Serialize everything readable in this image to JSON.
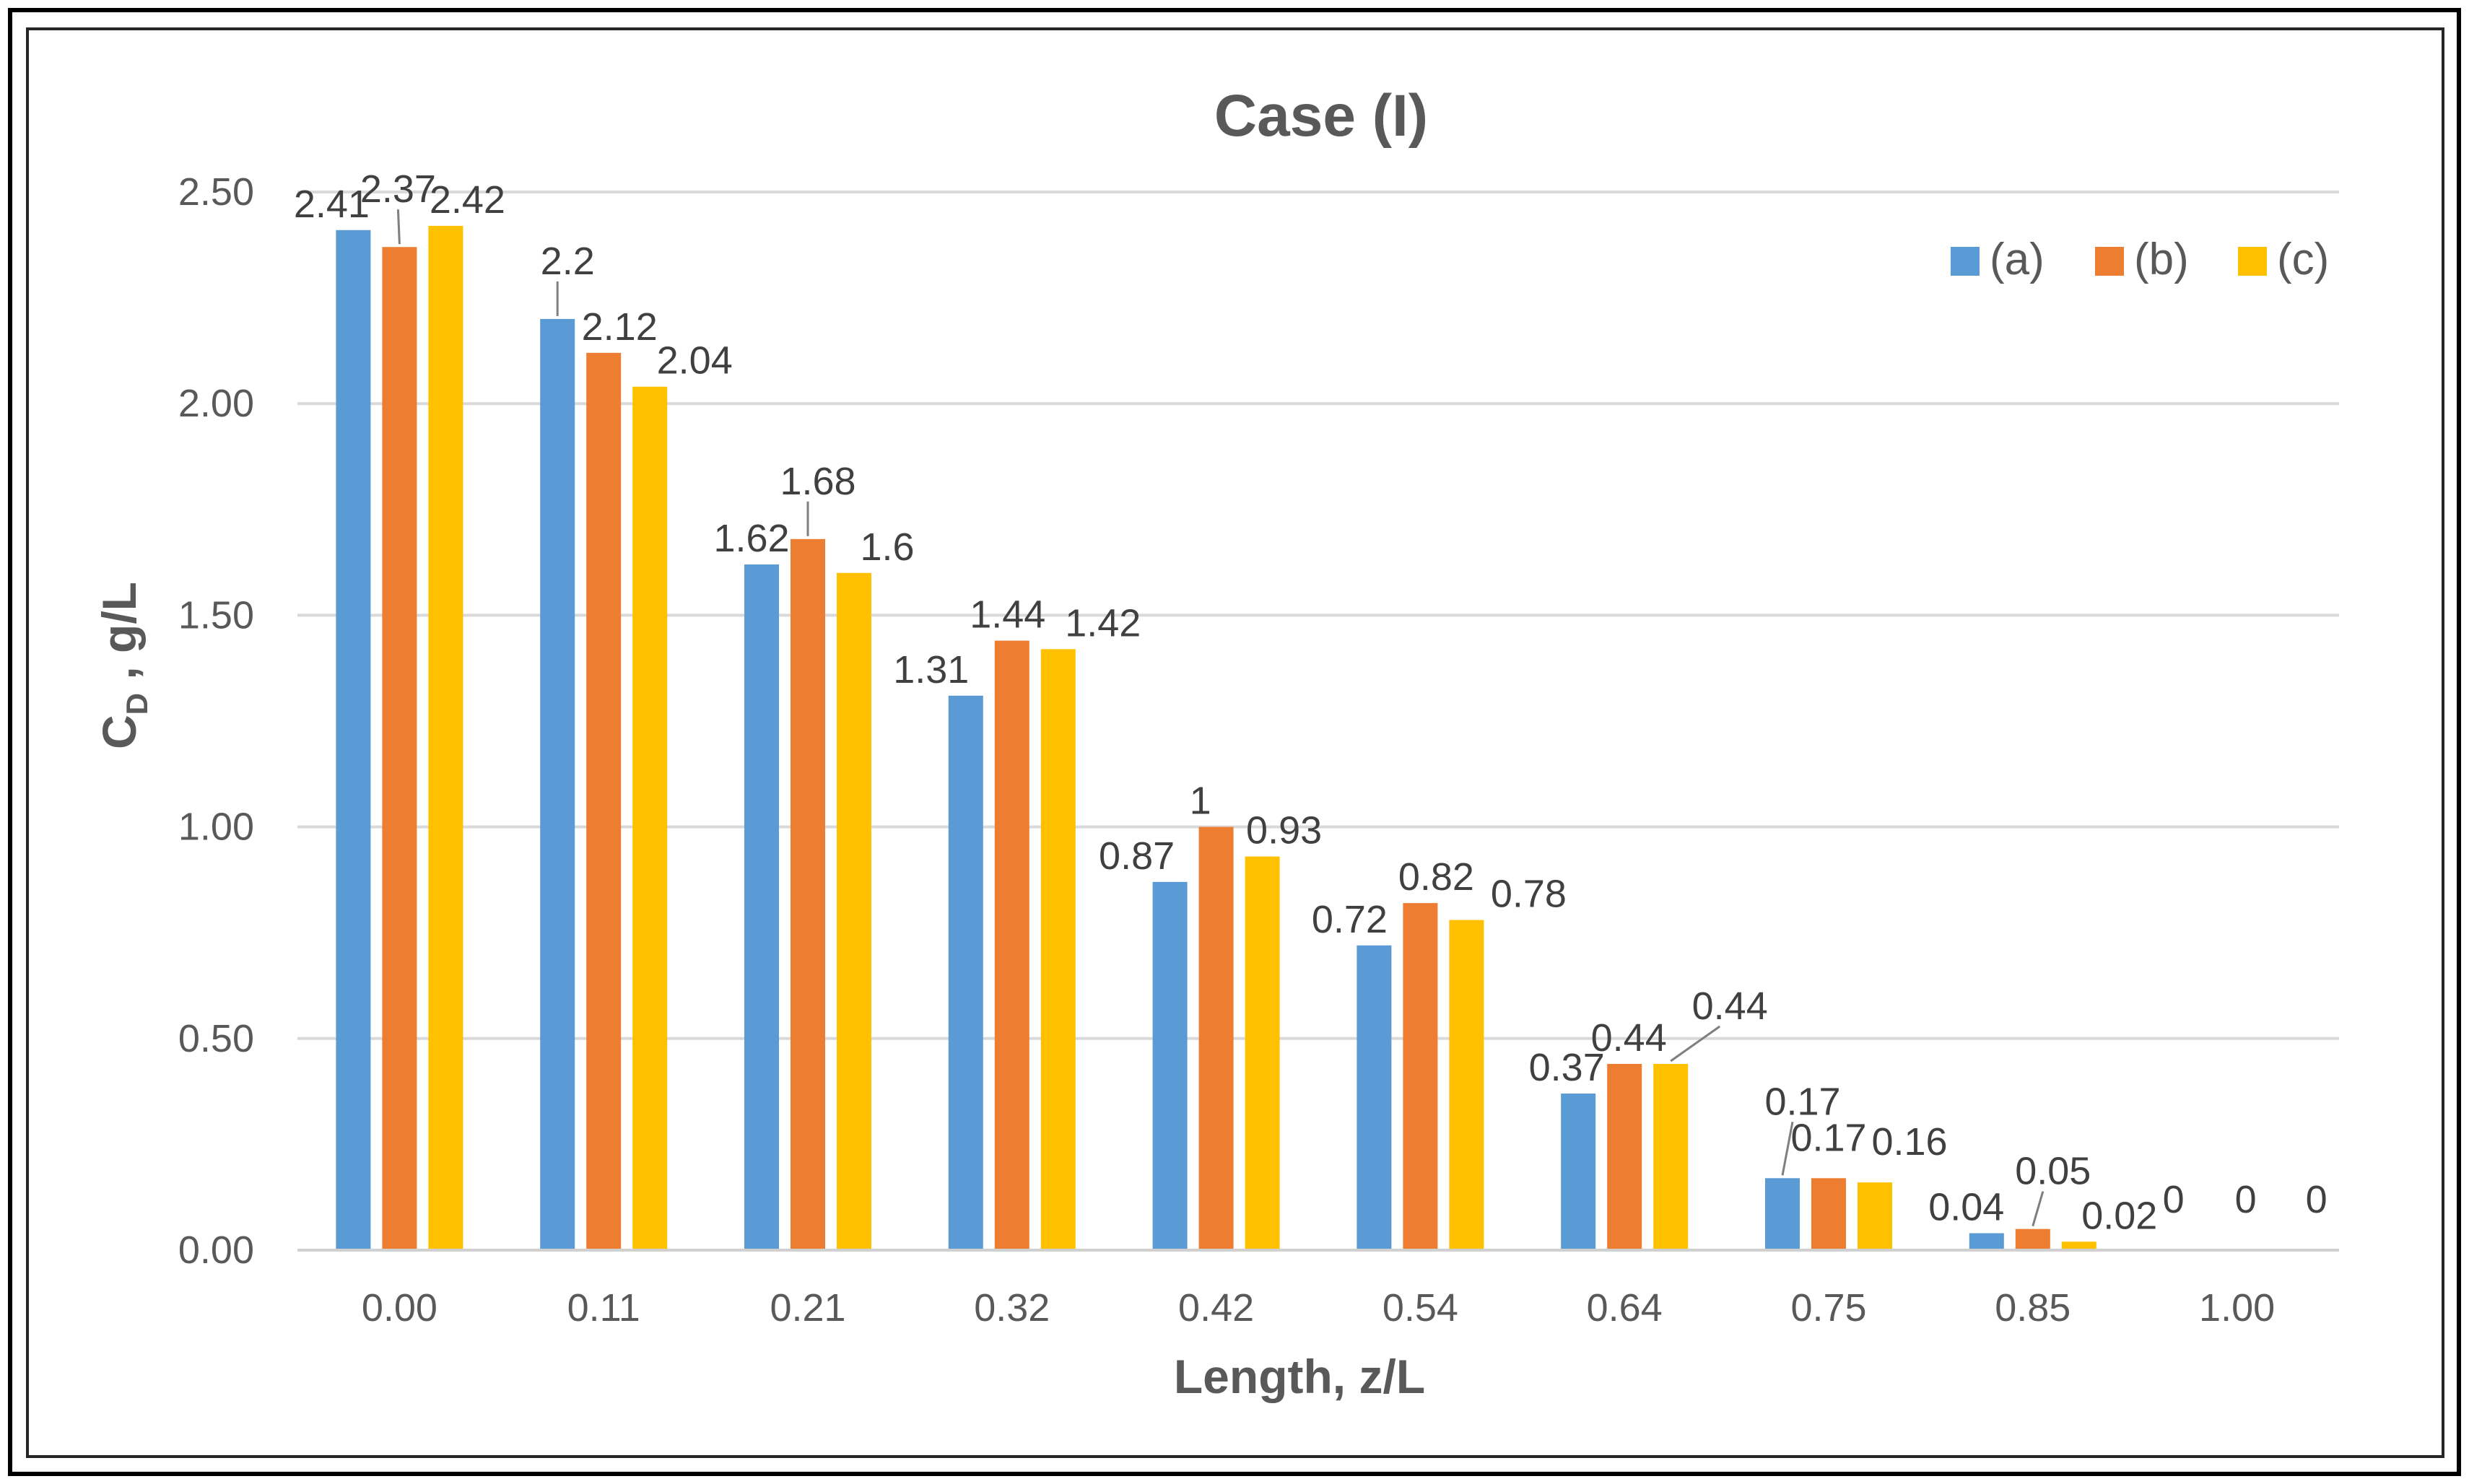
{
  "chart_data": {
    "type": "bar",
    "title": "Case (I)",
    "xlabel": "Length, z/L",
    "ylabel_main": "C",
    "ylabel_sub": "D",
    "ylabel_rest": " , g/L",
    "ylim": [
      0,
      2.5
    ],
    "ytick_values": [
      0,
      0.5,
      1,
      1.5,
      2,
      2.5
    ],
    "ytick_labels": [
      "0.00",
      "0.50",
      "1.00",
      "1.50",
      "2.00",
      "2.50"
    ],
    "grid": true,
    "legend_position": "top-right",
    "categories": [
      "0.00",
      "0.11",
      "0.21",
      "0.32",
      "0.42",
      "0.54",
      "0.64",
      "0.75",
      "0.85",
      "1.00"
    ],
    "series": [
      {
        "name": "(a)",
        "color": "#5B9BD5",
        "values": [
          2.41,
          2.2,
          1.62,
          1.31,
          0.87,
          0.72,
          0.37,
          0.17,
          0.04,
          0
        ],
        "labels": [
          "2.41",
          "2.2",
          "1.62",
          "1.31",
          "0.87",
          "0.72",
          "0.37",
          "0.17",
          "0.04",
          "0"
        ]
      },
      {
        "name": "(b)",
        "color": "#ED7D31",
        "values": [
          2.37,
          2.12,
          1.68,
          1.44,
          1,
          0.82,
          0.44,
          0.17,
          0.05,
          0
        ],
        "labels": [
          "2.37",
          "2.12",
          "1.68",
          "1.44",
          "1",
          "0.82",
          "0.44",
          "0.17",
          "0.05",
          "0"
        ]
      },
      {
        "name": "(c)",
        "color": "#FFC000",
        "values": [
          2.42,
          2.04,
          1.6,
          1.42,
          0.93,
          0.78,
          0.44,
          0.16,
          0.02,
          0
        ],
        "labels": [
          "2.42",
          "2.04",
          "1.6",
          "1.42",
          "0.93",
          "0.78",
          "0.44",
          "0.16",
          "0.02",
          "0"
        ]
      }
    ]
  }
}
